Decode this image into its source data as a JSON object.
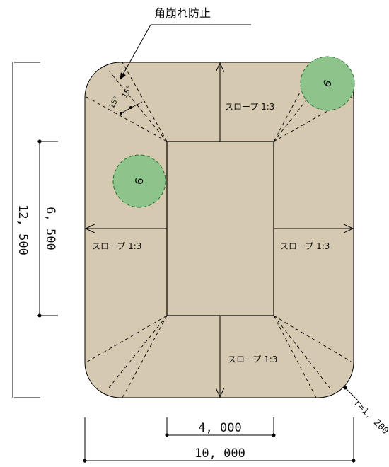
{
  "colors": {
    "slab_fill": "#d6c9b2",
    "stroke": "#000000",
    "tree_fill": "#8dc48c",
    "tree_stroke": "#2f6b2f",
    "background": "#ffffff"
  },
  "callout": {
    "title": "角崩れ防止",
    "angle_label_1": "15°",
    "angle_label_2": "15°"
  },
  "slopes": {
    "top": "スロープ 1:3",
    "left": "スロープ 1:3",
    "right": "スロープ 1:3",
    "bottom": "スロープ 1:3"
  },
  "dimensions": {
    "overall_height": "12, 500",
    "inner_height": "6, 500",
    "inner_width": "4, 000",
    "overall_width": "10, 000",
    "corner_radius": "r=1, 200"
  },
  "trees": [
    {
      "symbol": "6",
      "position": "top-right"
    },
    {
      "symbol": "6",
      "position": "left"
    }
  ]
}
